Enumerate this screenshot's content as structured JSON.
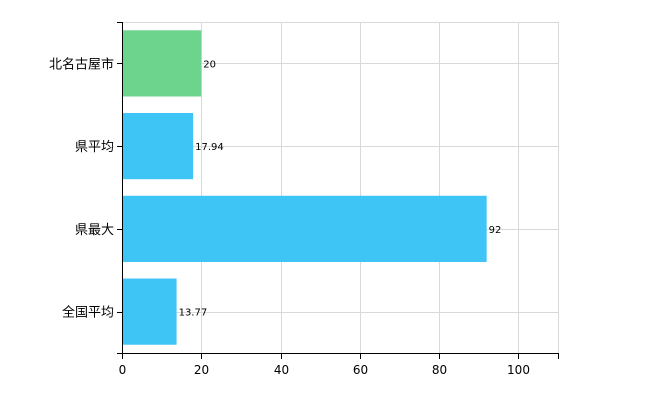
{
  "chart_data": {
    "type": "bar",
    "orientation": "horizontal",
    "categories": [
      "北名古屋市",
      "県平均",
      "県最大",
      "全国平均"
    ],
    "values": [
      20,
      17.94,
      92,
      13.77
    ],
    "value_labels": [
      "20",
      "17.94",
      "92",
      "13.77"
    ],
    "bar_colors": [
      "#6dd48d",
      "#3ec4f5",
      "#3ec4f5",
      "#3ec4f5"
    ],
    "title": "",
    "xlabel": "",
    "ylabel": "",
    "xlim": [
      0,
      110
    ],
    "xticks": [
      0,
      20,
      40,
      60,
      80,
      100
    ],
    "xtick_labels": [
      "0",
      "20",
      "40",
      "60",
      "80",
      "100"
    ],
    "grid": true,
    "legend": "none"
  }
}
